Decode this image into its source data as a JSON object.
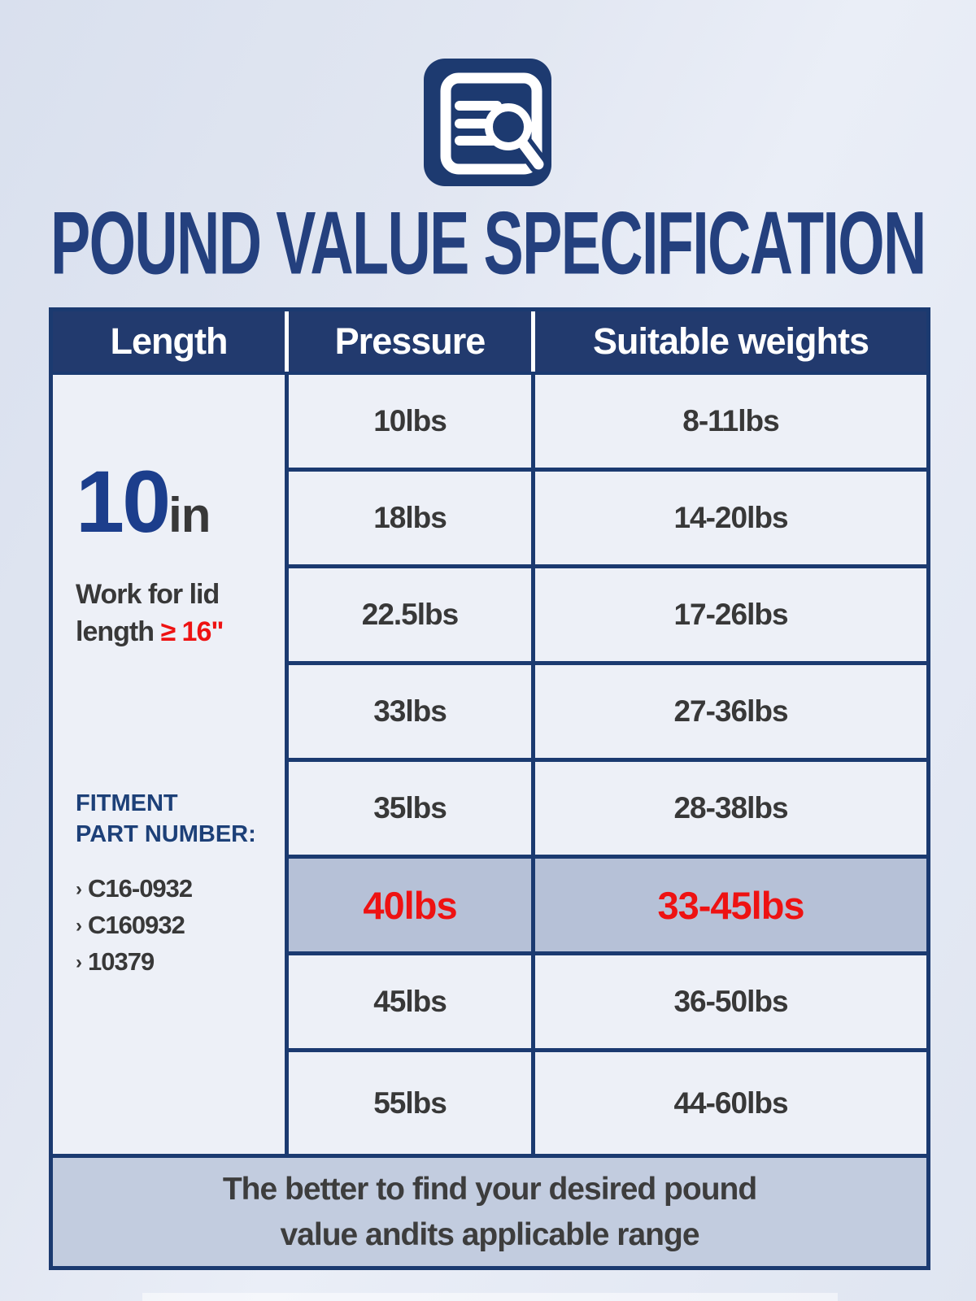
{
  "page": {
    "title": "POUND VALUE SPECIFICATION"
  },
  "icon": {
    "name": "document-search-icon"
  },
  "table": {
    "headers": [
      "Length",
      "Pressure",
      "Suitable weights"
    ],
    "length_cell": {
      "size_value": "10",
      "size_unit": "in",
      "note_line1": "Work for lid",
      "note_line2_prefix": "length ",
      "note_line2_red": "≥ 16\"",
      "fitment_label_line1": "FITMENT",
      "fitment_label_line2": "PART NUMBER:",
      "bullet": "›",
      "part_numbers": [
        "C16-0932",
        "C160932",
        "10379"
      ]
    },
    "rows": [
      {
        "pressure": "10lbs",
        "weights": "8-11lbs",
        "highlight": false
      },
      {
        "pressure": "18lbs",
        "weights": "14-20lbs",
        "highlight": false
      },
      {
        "pressure": "22.5lbs",
        "weights": "17-26lbs",
        "highlight": false
      },
      {
        "pressure": "33lbs",
        "weights": "27-36lbs",
        "highlight": false
      },
      {
        "pressure": "35lbs",
        "weights": "28-38lbs",
        "highlight": false
      },
      {
        "pressure": "40lbs",
        "weights": "33-45lbs",
        "highlight": true
      },
      {
        "pressure": "45lbs",
        "weights": "36-50lbs",
        "highlight": false
      },
      {
        "pressure": "55lbs",
        "weights": "44-60lbs",
        "highlight": false
      }
    ],
    "footer": {
      "line1": "The better to find your desired pound",
      "line2": "value andits applicable range"
    }
  },
  "colors": {
    "header_bg": "#223a6e",
    "border": "#1b3a70",
    "cell_bg": "#edf0f7",
    "highlight_bg": "#b6c1d7",
    "highlight_text": "#ee1212",
    "title": "#24407e",
    "body_text": "#383838",
    "footer_bg": "#c2ccdf"
  }
}
